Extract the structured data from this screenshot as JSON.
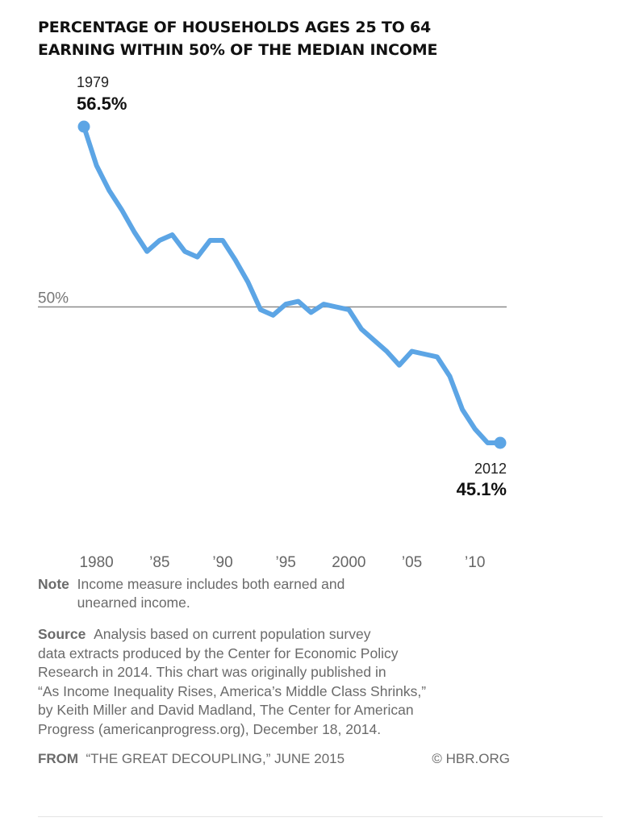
{
  "title_lines": [
    "PERCENTAGE OF HOUSEHOLDS AGES 25 TO 64",
    "EARNING WITHIN 50% OF THE MEDIAN INCOME"
  ],
  "chart_data": {
    "type": "line",
    "x_ticks": [
      {
        "value": 1980,
        "label": "1980"
      },
      {
        "value": 1985,
        "label": "’85"
      },
      {
        "value": 1990,
        "label": "’90"
      },
      {
        "value": 1995,
        "label": "’95"
      },
      {
        "value": 2000,
        "label": "2000"
      },
      {
        "value": 2005,
        "label": "’05"
      },
      {
        "value": 2010,
        "label": "’10"
      }
    ],
    "xlim": [
      1979,
      2012
    ],
    "ylim": [
      43,
      57
    ],
    "reference_line": {
      "value": 50,
      "label": "50%"
    },
    "series": [
      {
        "color": "#5ca5e5",
        "x": [
          1979,
          1980,
          1981,
          1982,
          1983,
          1984,
          1985,
          1986,
          1987,
          1988,
          1989,
          1990,
          1991,
          1992,
          1993,
          1994,
          1995,
          1996,
          1997,
          1998,
          1999,
          2000,
          2001,
          2002,
          2003,
          2004,
          2005,
          2006,
          2007,
          2008,
          2009,
          2010,
          2011,
          2012
        ],
        "y": [
          56.5,
          55.1,
          54.2,
          53.5,
          52.7,
          52.0,
          52.4,
          52.6,
          52.0,
          51.8,
          52.4,
          52.4,
          51.7,
          50.9,
          49.9,
          49.7,
          50.1,
          50.2,
          49.8,
          50.1,
          50.0,
          49.9,
          49.2,
          48.8,
          48.4,
          47.9,
          48.4,
          48.3,
          48.2,
          47.5,
          46.3,
          45.6,
          45.1,
          45.1
        ]
      }
    ],
    "annotations": [
      {
        "year": "1979",
        "value": "56.5%"
      },
      {
        "year": "2012",
        "value": "45.1%"
      }
    ]
  },
  "note": {
    "label": "Note",
    "text": "Income measure includes both earned and unearned income."
  },
  "source": {
    "label": "Source",
    "lines": [
      "Analysis based on current population survey",
      "data extracts produced by the Center for Economic Policy",
      "Research in 2014. This chart was originally published in",
      "“As Income Inequality Rises, America’s Middle Class Shrinks,”",
      "by Keith Miller and David Madland, The Center for American",
      "Progress (americanprogress.org), December 18, 2014."
    ]
  },
  "footer": {
    "from_label": "FROM",
    "from_text": "“THE GREAT DECOUPLING,” JUNE 2015",
    "credit": "© HBR.ORG"
  },
  "colors": {
    "line": "#5ca5e5",
    "reference_line": "#8a8a8a"
  }
}
